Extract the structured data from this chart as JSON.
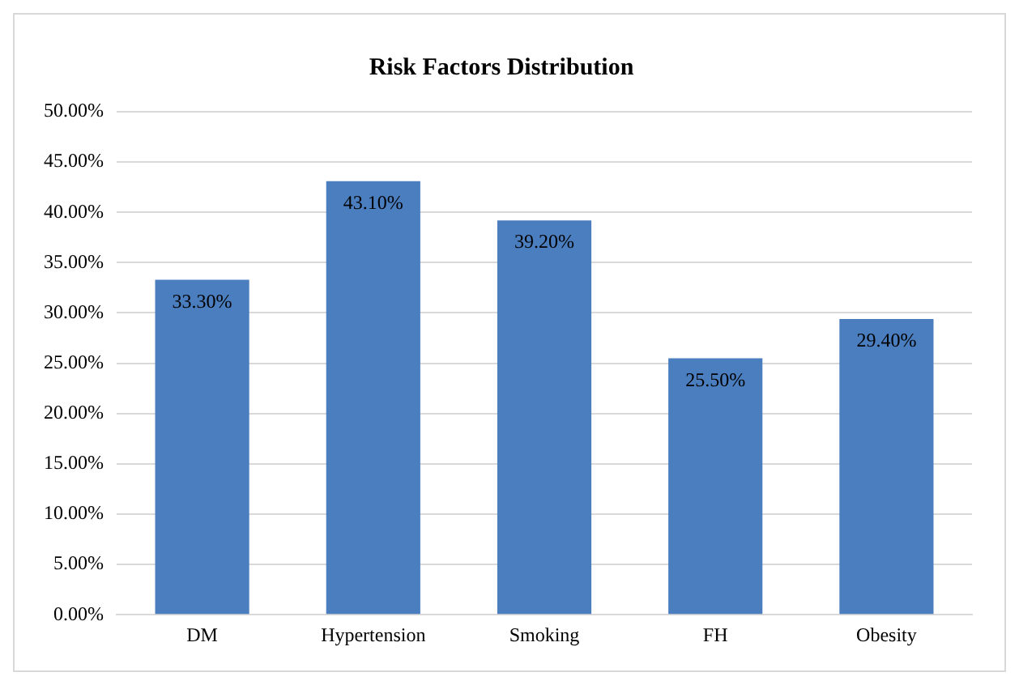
{
  "chart_data": {
    "type": "bar",
    "title": "Risk Factors Distribution",
    "categories": [
      "DM",
      "Hypertension",
      "Smoking",
      "FH",
      "Obesity"
    ],
    "values": [
      33.3,
      43.1,
      39.2,
      25.5,
      29.4
    ],
    "value_labels": [
      "33.30%",
      "43.10%",
      "39.20%",
      "25.50%",
      "29.40%"
    ],
    "color": "#4a7ebf",
    "ylim": [
      0,
      50
    ],
    "yticks": [
      {
        "value": 0,
        "label": "0.00%"
      },
      {
        "value": 5,
        "label": "5.00%"
      },
      {
        "value": 10,
        "label": "10.00%"
      },
      {
        "value": 15,
        "label": "15.00%"
      },
      {
        "value": 20,
        "label": "20.00%"
      },
      {
        "value": 25,
        "label": "25.00%"
      },
      {
        "value": 30,
        "label": "30.00%"
      },
      {
        "value": 35,
        "label": "35.00%"
      },
      {
        "value": 40,
        "label": "40.00%"
      },
      {
        "value": 45,
        "label": "45.00%"
      },
      {
        "value": 50,
        "label": "50.00%"
      }
    ],
    "grid": "y",
    "legend": false
  }
}
